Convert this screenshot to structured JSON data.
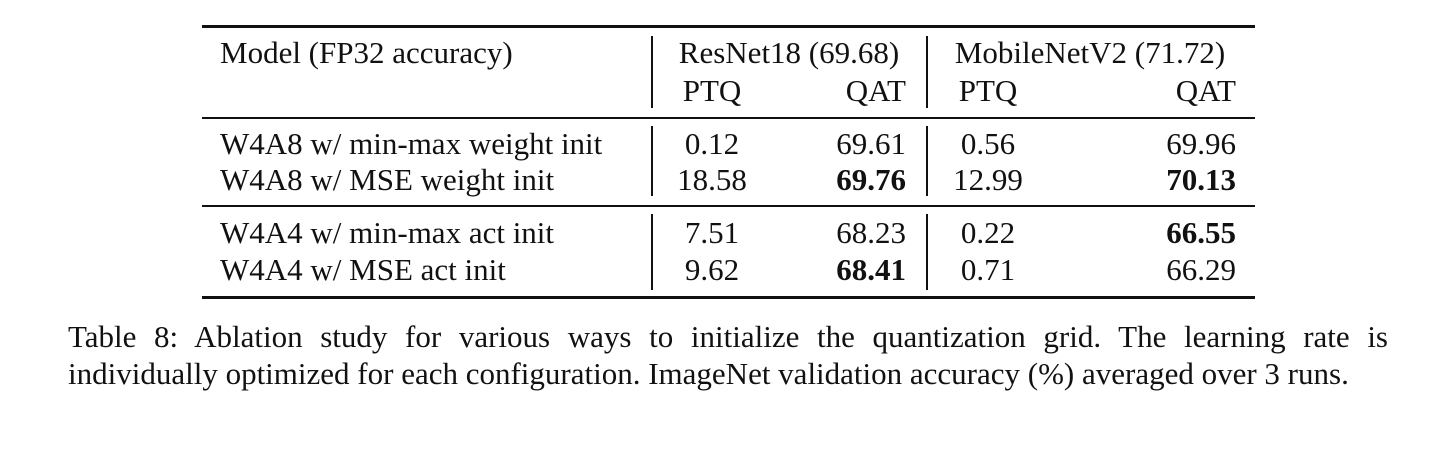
{
  "table": {
    "header": {
      "model_label": "Model (FP32 accuracy)",
      "groups": [
        "ResNet18 (69.68)",
        "MobileNetV2 (71.72)"
      ],
      "subcols": [
        "PTQ",
        "QAT",
        "PTQ",
        "QAT"
      ]
    },
    "rows": [
      {
        "label": "W4A8 w/ min-max weight init",
        "values": [
          "0.12",
          "69.61",
          "0.56",
          "69.96"
        ]
      },
      {
        "label": "W4A8 w/ MSE weight init",
        "values": [
          "18.58",
          "69.76",
          "12.99",
          "70.13"
        ]
      },
      {
        "label": "W4A4 w/ min-max act init",
        "values": [
          "7.51",
          "68.23",
          "0.22",
          "66.55"
        ]
      },
      {
        "label": "W4A4 w/ MSE act init",
        "values": [
          "9.62",
          "68.41",
          "0.71",
          "66.29"
        ]
      }
    ],
    "bold_cells": [
      [
        1,
        1
      ],
      [
        1,
        3
      ],
      [
        2,
        3
      ],
      [
        3,
        1
      ]
    ]
  },
  "caption": "Table 8: Ablation study for various ways to initialize the quantization grid. The learning rate is individually optimized for each configuration. ImageNet validation accuracy (%) averaged over 3 runs."
}
